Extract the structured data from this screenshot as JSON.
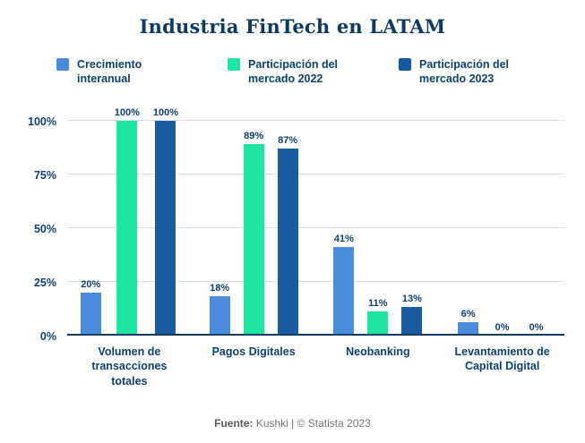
{
  "title": "Industria FinTech en LATAM",
  "colors": {
    "series_blue": "#4a8cd9",
    "series_green": "#1ee5a2",
    "series_navy": "#1a5a9e",
    "text_navy": "#10416e",
    "gridline": "#dce0e6",
    "axis": "#123f63"
  },
  "legend": [
    {
      "label": "Crecimiento interanual",
      "color": "#4a8cd9"
    },
    {
      "label": "Participación del mercado 2022",
      "color": "#1ee5a2"
    },
    {
      "label": "Participación del mercado 2023",
      "color": "#1a5a9e"
    }
  ],
  "chart_data": {
    "type": "bar",
    "title": "Industria FinTech en LATAM",
    "categories": [
      "Volumen de transacciones totales",
      "Pagos Digitales",
      "Neobanking",
      "Levantamiento de Capital Digital"
    ],
    "series": [
      {
        "name": "Crecimiento interanual",
        "values": [
          20,
          18,
          41,
          6
        ]
      },
      {
        "name": "Participación del mercado 2022",
        "values": [
          100,
          89,
          11,
          0
        ]
      },
      {
        "name": "Participación del mercado 2023",
        "values": [
          100,
          87,
          13,
          0
        ]
      }
    ],
    "xlabel": "",
    "ylabel": "",
    "ylim": [
      0,
      100
    ],
    "yticks": [
      "0%",
      "25%",
      "50%",
      "75%",
      "100%"
    ],
    "value_label_suffix": "%",
    "grid": true,
    "legend_position": "top"
  },
  "footer": {
    "source_label": "Fuente:",
    "source_text": " Kushki | © Statista 2023"
  }
}
